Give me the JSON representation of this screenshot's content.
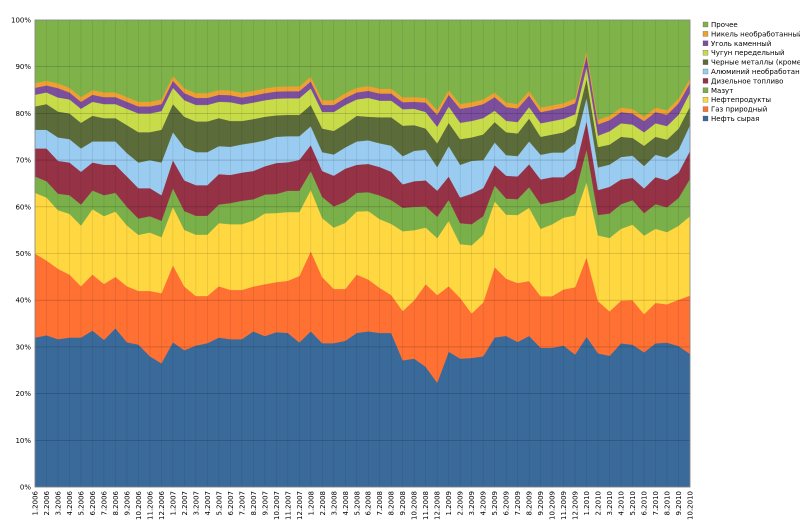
{
  "chart_data": {
    "type": "area",
    "stacked": true,
    "normalized": true,
    "ylim": [
      0,
      100
    ],
    "y_ticks": [
      "0%",
      "10%",
      "20%",
      "30%",
      "40%",
      "50%",
      "60%",
      "70%",
      "80%",
      "90%",
      "100%"
    ],
    "grid": true,
    "legend_position": "right",
    "categories": [
      "1.2006",
      "2.2006",
      "3.2006",
      "4.2006",
      "5.2006",
      "6.2006",
      "7.2006",
      "8.2006",
      "9.2006",
      "10.2006",
      "11.2006",
      "12.2006",
      "1.2007",
      "2.2007",
      "3.2007",
      "4.2007",
      "5.2007",
      "6.2007",
      "7.2007",
      "8.2007",
      "9.2007",
      "10.2007",
      "11.2007",
      "12.2007",
      "1.2008",
      "2.2008",
      "3.2008",
      "4.2008",
      "5.2008",
      "6.2008",
      "7.2008",
      "8.2008",
      "9.2008",
      "10.2008",
      "11.2008",
      "12.2008",
      "1.2009",
      "2.2009",
      "3.2009",
      "4.2009",
      "5.2009",
      "6.2009",
      "7.2009",
      "8.2009",
      "9.2009",
      "10.2009",
      "11.2009",
      "12.2009",
      "1.2010",
      "2.2010",
      "3.2010",
      "4.2010",
      "5.2010",
      "6.2010",
      "7.2010",
      "8.2010",
      "9.2010",
      "10.2010"
    ],
    "series": [
      {
        "name": "Нефть сырая",
        "color": "#3A6A9A",
        "values": [
          32,
          32.5,
          31.5,
          32,
          32,
          33.5,
          31.5,
          34,
          31,
          30.5,
          28,
          26.5,
          31,
          29,
          30,
          30.5,
          32,
          31.5,
          31.5,
          33,
          32,
          32.5,
          32.5,
          30.5,
          33,
          30.5,
          30.5,
          31,
          33,
          33,
          32.5,
          32.5,
          27,
          27.5,
          25.5,
          22,
          29,
          27.5,
          27.5,
          28,
          33,
          33,
          32,
          33,
          31,
          31,
          31.5,
          29.5,
          32,
          29.5,
          29.5,
          32,
          32,
          30,
          32,
          32,
          30.5,
          28.5
        ]
      },
      {
        "name": "Газ природный",
        "color": "#FF7033",
        "values": [
          18,
          16,
          15,
          13.5,
          11,
          12,
          12,
          11,
          12,
          11.5,
          14,
          15,
          16.5,
          13.5,
          10.5,
          10,
          11,
          10.5,
          10.5,
          9.5,
          11,
          10.5,
          11,
          14,
          17,
          14,
          11.5,
          11,
          12.5,
          11,
          9.5,
          8,
          10.5,
          12.5,
          17.5,
          18.5,
          14,
          13,
          9.5,
          11.5,
          15.5,
          12.5,
          13,
          12,
          11.5,
          11.5,
          12.5,
          15,
          17,
          11.5,
          10,
          9.5,
          10,
          8.5,
          9,
          8.5,
          10,
          12.5
        ]
      },
      {
        "name": "Нефтепродукты",
        "color": "#FFD740",
        "values": [
          13,
          13.5,
          12.5,
          13,
          13,
          14,
          14.5,
          14,
          13,
          12,
          12.5,
          12,
          12.5,
          12,
          13,
          13,
          13.5,
          14,
          14,
          14,
          15,
          14.5,
          14.5,
          13.5,
          13,
          12.5,
          13,
          14,
          13.5,
          14.5,
          14.5,
          15,
          17,
          15,
          12,
          12,
          14,
          11.5,
          14.5,
          14.5,
          14.5,
          14,
          15,
          16,
          15,
          16,
          16,
          16,
          16,
          14.5,
          16.5,
          16,
          17,
          17.5,
          16.5,
          16,
          16,
          17
        ]
      },
      {
        "name": "Мазут",
        "color": "#7AB04A",
        "values": [
          3.5,
          3.5,
          3.5,
          4,
          4.5,
          4,
          4.5,
          4,
          4,
          3.5,
          3.5,
          3.5,
          4,
          4,
          4,
          4,
          4,
          4.5,
          5,
          4.5,
          4,
          4,
          4.5,
          4.5,
          4,
          4.5,
          4.5,
          4.5,
          4,
          4,
          5,
          5,
          5,
          5,
          4.5,
          4.5,
          4.5,
          4.5,
          4.5,
          4,
          3.5,
          3.5,
          3.5,
          4.5,
          5.5,
          5,
          4,
          5,
          7,
          4.5,
          5.5,
          5.5,
          5.5,
          5,
          5.5,
          5.5,
          6,
          8
        ]
      },
      {
        "name": "Дизельное топливо",
        "color": "#963246",
        "values": [
          6,
          7,
          7,
          7,
          7,
          6,
          6.5,
          6,
          6.5,
          6.5,
          6,
          5.5,
          6,
          6.5,
          6.5,
          6.5,
          6.5,
          6,
          6,
          6,
          6,
          6.5,
          6,
          6.5,
          5.5,
          5.5,
          6.5,
          7,
          6,
          6,
          6,
          6,
          5,
          5.5,
          5.5,
          5.5,
          5,
          5.5,
          6.5,
          6,
          4.5,
          5,
          5,
          5,
          5.5,
          5.5,
          5,
          5.5,
          6,
          5.5,
          6,
          5.5,
          5,
          5.5,
          6,
          6,
          5.5,
          6
        ]
      },
      {
        "name": "Алюминий необработанный",
        "color": "#99CCF0",
        "values": [
          4,
          4,
          5,
          5,
          5,
          4.5,
          5,
          5,
          5,
          5.5,
          6,
          7,
          6,
          7,
          7,
          7,
          6,
          6,
          6,
          6,
          5.5,
          5.5,
          5.5,
          5,
          4,
          4,
          4.5,
          4.5,
          5,
          5,
          5,
          5.5,
          6,
          6.5,
          6.5,
          5,
          6.5,
          7,
          7,
          6,
          5,
          4.5,
          4.5,
          5,
          5.5,
          5.5,
          5.5,
          5.5,
          5,
          5,
          5,
          5,
          5,
          5,
          5,
          5,
          5,
          5.5
        ]
      },
      {
        "name": "Черные металлы (кроме)",
        "color": "#5C6B3A",
        "values": [
          5,
          5.5,
          5.5,
          5.5,
          5.5,
          5.5,
          5,
          5,
          6,
          6.5,
          6,
          7,
          6,
          6.5,
          6.5,
          6.5,
          6,
          5.5,
          5,
          5,
          5,
          4.5,
          4.5,
          4.5,
          4.5,
          5,
          5,
          5,
          5.5,
          5,
          5.5,
          6,
          6.5,
          5.5,
          4.5,
          5,
          5,
          5.5,
          5,
          5.5,
          4.5,
          5,
          5,
          5,
          4,
          4,
          4.5,
          4,
          4,
          4.5,
          4.5,
          4.5,
          4,
          4.5,
          4,
          4,
          4.5,
          4
        ]
      },
      {
        "name": "Чугун передельный",
        "color": "#C8DC4A",
        "values": [
          2.5,
          2.5,
          3,
          3,
          3,
          3,
          3,
          3,
          3.5,
          4,
          4,
          4,
          3.5,
          3.5,
          3.5,
          3.5,
          3.5,
          4,
          3.5,
          3.5,
          3.5,
          3.5,
          3.5,
          3.5,
          3.5,
          3.5,
          4,
          4,
          3.5,
          4,
          3.5,
          3.5,
          3.5,
          3.5,
          3.5,
          3.5,
          3.5,
          3.5,
          3.5,
          3.5,
          2.5,
          2.5,
          2.5,
          2.5,
          3,
          3,
          3,
          2.5,
          2.5,
          2.5,
          3,
          3,
          3,
          3,
          3,
          3,
          3,
          3
        ]
      },
      {
        "name": "Уголь каменный",
        "color": "#7B4F9E",
        "values": [
          1.5,
          1.5,
          2,
          1.5,
          1.5,
          1.5,
          1.5,
          1.5,
          1.5,
          1.5,
          1.5,
          1.5,
          1.5,
          1.5,
          1.5,
          1.5,
          1.5,
          1.5,
          1.5,
          1.5,
          1.5,
          1.5,
          1.5,
          1.5,
          1.5,
          1.5,
          1.5,
          1.5,
          1.5,
          1.5,
          1.5,
          1.5,
          1.5,
          1.5,
          2,
          2.5,
          2.5,
          3,
          3,
          3,
          3,
          3,
          3,
          2.5,
          2.5,
          2.5,
          2.5,
          2.5,
          2.5,
          2.5,
          2.5,
          2.5,
          2.5,
          2.5,
          2.5,
          2.5,
          2.5,
          2
        ]
      },
      {
        "name": "Никель необработанный",
        "color": "#F0A030",
        "values": [
          1,
          1,
          1,
          1,
          1,
          1,
          1,
          1,
          1,
          1,
          1,
          1,
          1,
          1,
          1,
          1,
          1,
          1,
          1,
          1,
          1,
          1,
          1,
          1,
          1,
          1,
          1,
          1,
          1,
          1,
          1,
          1,
          1,
          1,
          1,
          1,
          1,
          1,
          1,
          1,
          1,
          1,
          1,
          1,
          1,
          1,
          1,
          1,
          1,
          1,
          1,
          1,
          1,
          1,
          1,
          1,
          1,
          1
        ]
      },
      {
        "name": "Прочее",
        "color": "#7FB34A",
        "values": [
          13.5,
          13,
          13.5,
          14.5,
          16.5,
          15,
          15.5,
          15.5,
          16.5,
          17.5,
          17.5,
          17,
          12,
          14.5,
          15.5,
          15.5,
          15,
          15,
          15.5,
          15,
          14.5,
          14,
          14,
          14,
          12,
          17,
          17,
          15.5,
          14.5,
          14,
          14.5,
          14.5,
          16.5,
          16.5,
          16.5,
          19,
          15,
          18,
          17.5,
          17,
          16,
          18,
          18.5,
          15.5,
          19.5,
          19,
          18.5,
          17.5,
          6.5,
          22,
          21.5,
          19.5,
          20,
          21.5,
          19.5,
          20,
          17,
          12.5
        ]
      }
    ]
  }
}
